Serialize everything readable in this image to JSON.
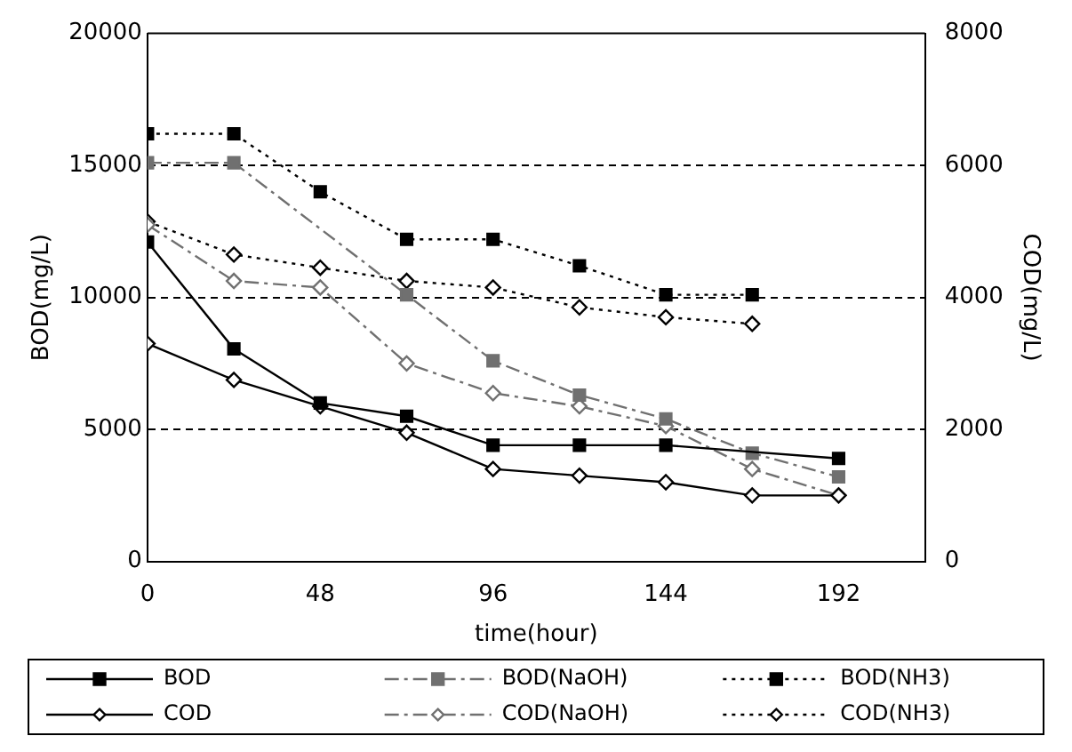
{
  "chart_data": {
    "type": "line",
    "xlabel": "time(hour)",
    "ylabel": "BOD(mg/L)",
    "y2label": "COD(mg/L)",
    "xlim": [
      0,
      216
    ],
    "xticks": [
      0,
      48,
      96,
      144,
      192
    ],
    "ylim": [
      0,
      20000
    ],
    "yticks": [
      0,
      5000,
      10000,
      15000,
      20000
    ],
    "y2lim": [
      0,
      8000
    ],
    "y2ticks": [
      0,
      2000,
      4000,
      6000,
      8000
    ],
    "grid": "y",
    "legend": "bottom",
    "series": [
      {
        "name": "BOD",
        "color": "#000000",
        "marker": "square",
        "line_style": "solid",
        "x": [
          0,
          24,
          48,
          72,
          96,
          120,
          144,
          192
        ],
        "values": [
          12100,
          8050,
          6000,
          5500,
          4400,
          4400,
          4400,
          3900
        ]
      },
      {
        "name": "BOD(NaOH)",
        "color": "#707070",
        "marker": "square",
        "line_style": "dashed",
        "x": [
          0,
          24,
          72,
          96,
          120,
          144,
          168,
          192
        ],
        "values": [
          15100,
          15100,
          10100,
          7600,
          6300,
          5400,
          4100,
          3200
        ]
      },
      {
        "name": "BOD(NH3)",
        "color": "#000000",
        "marker": "square",
        "line_style": "dotted",
        "x": [
          0,
          24,
          48,
          72,
          96,
          120,
          144,
          168
        ],
        "values": [
          16200,
          16200,
          14000,
          12200,
          12200,
          11200,
          10100,
          10100
        ]
      },
      {
        "name": "COD",
        "color": "#000000",
        "marker": "diamond",
        "line_style": "solid",
        "axis": "y2",
        "x": [
          0,
          24,
          48,
          72,
          96,
          120,
          144,
          168,
          192
        ],
        "values": [
          3300,
          2750,
          2350,
          1950,
          1400,
          1300,
          1200,
          1000,
          1000
        ]
      },
      {
        "name": "COD(NaOH)",
        "color": "#707070",
        "marker": "diamond",
        "line_style": "dashed",
        "axis": "y2",
        "x": [
          0,
          24,
          48,
          72,
          96,
          120,
          144,
          168,
          192
        ],
        "values": [
          5100,
          4250,
          4150,
          3000,
          2550,
          2350,
          2050,
          1400,
          1000
        ]
      },
      {
        "name": "COD(NH3)",
        "color": "#000000",
        "marker": "diamond",
        "line_style": "dotted",
        "axis": "y2",
        "x": [
          0,
          24,
          48,
          72,
          96,
          120,
          144,
          168
        ],
        "values": [
          5150,
          4650,
          4450,
          4250,
          4150,
          3850,
          3700,
          3600
        ]
      }
    ]
  }
}
